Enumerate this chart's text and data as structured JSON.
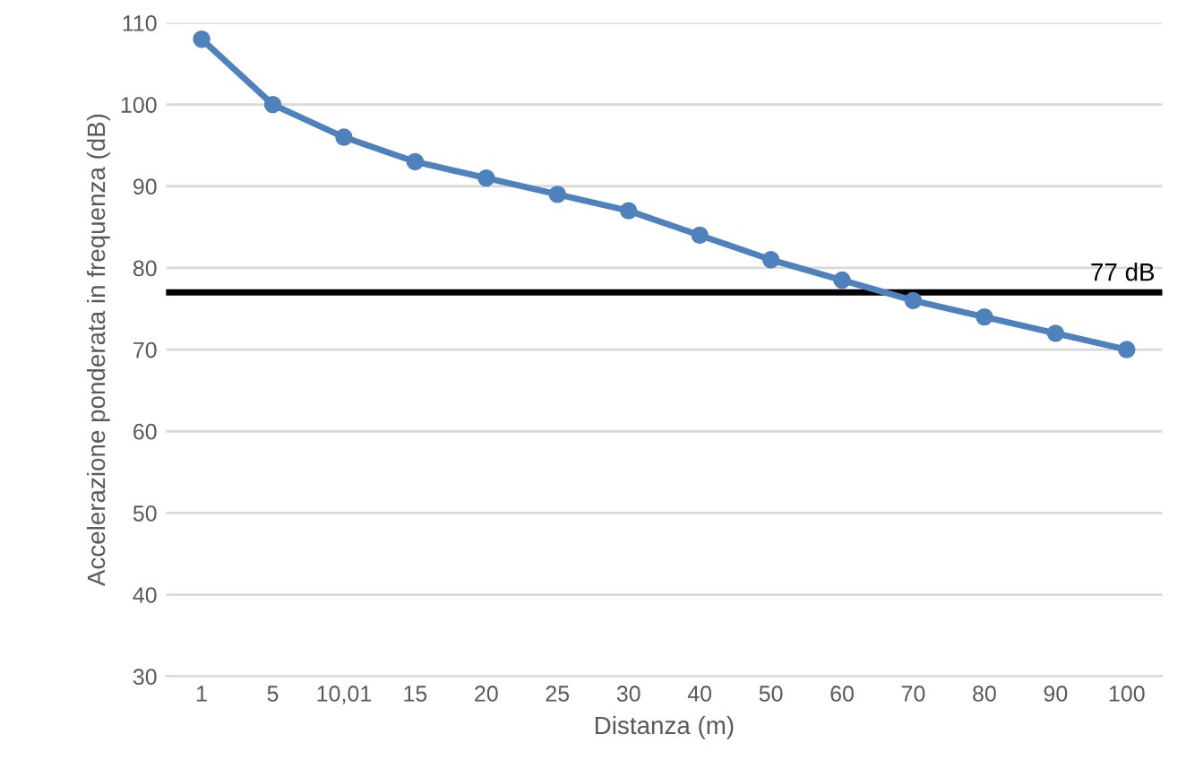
{
  "chart_data": {
    "type": "line",
    "xlabel": "Distanza (m)",
    "ylabel": "Accelerazione ponderata in frequenza (dB)",
    "categories": [
      "1",
      "5",
      "10,01",
      "15",
      "20",
      "25",
      "30",
      "40",
      "50",
      "60",
      "70",
      "80",
      "90",
      "100"
    ],
    "series": [
      {
        "color": "#4f81bd",
        "values": [
          108,
          100,
          96,
          93,
          91,
          89,
          87,
          84,
          81,
          78.5,
          76,
          74,
          72,
          70
        ]
      }
    ],
    "ylim": [
      30,
      110
    ],
    "yticks": [
      30,
      40,
      50,
      60,
      70,
      80,
      90,
      100,
      110
    ],
    "grid": "y",
    "marker": "circle",
    "line_style": "solid",
    "ref_lines": [
      {
        "axis": "y",
        "value": 77,
        "label": "77 dB",
        "color": "#000000",
        "line_style": "solid"
      }
    ]
  }
}
